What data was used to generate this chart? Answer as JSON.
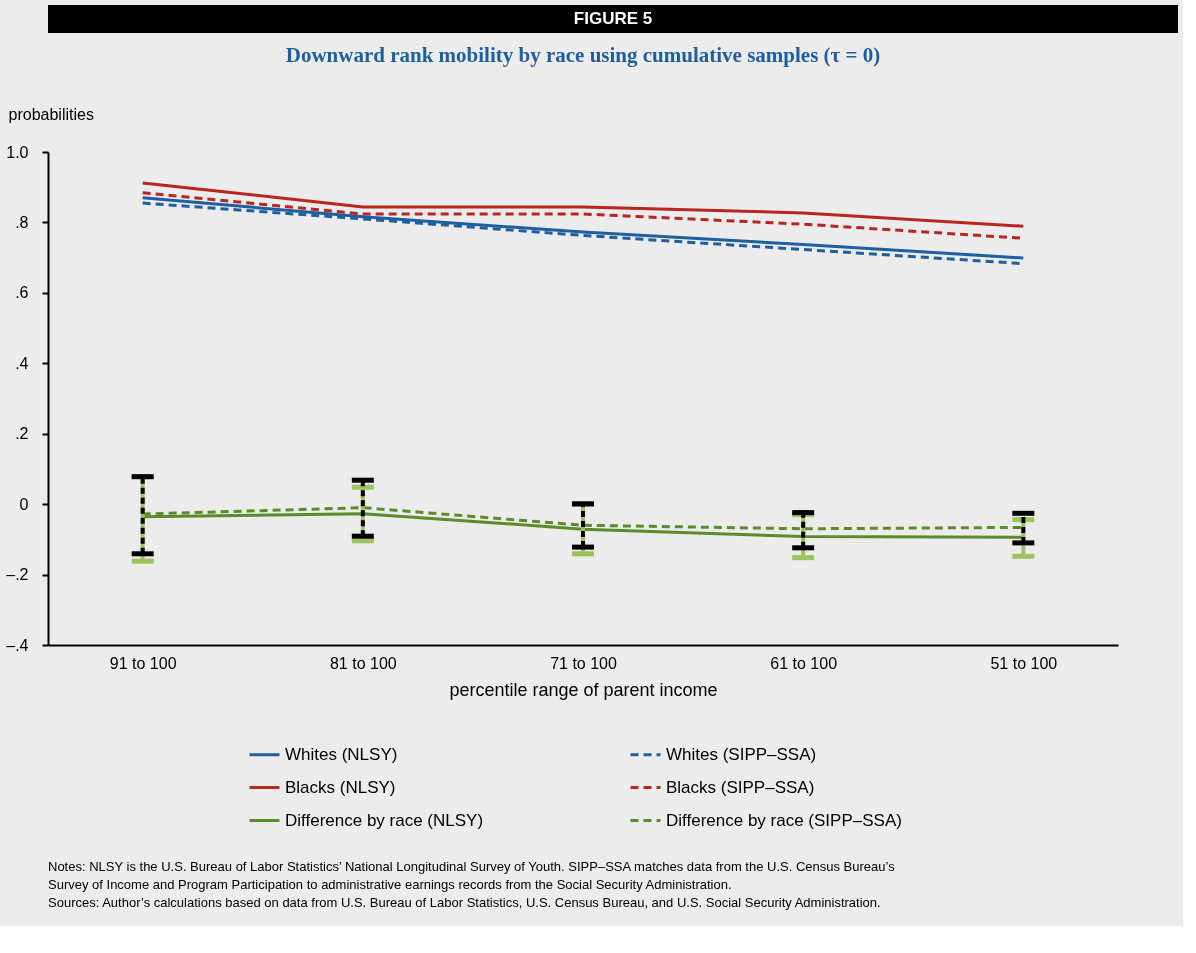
{
  "chart_data": {
    "type": "line",
    "title": "Downward rank mobility by race using cumulative samples (τ = 0)",
    "xlabel": "percentile range of parent income",
    "ylabel": "probabilities",
    "categories": [
      "91 to 100",
      "81 to 100",
      "71 to 100",
      "61 to 100",
      "51 to 100"
    ],
    "series": [
      {
        "name": "Whites (NLSY)",
        "color": "#1f5fa0",
        "line_style": "solid",
        "values": [
          0.87,
          0.816,
          0.773,
          0.737,
          0.699
        ]
      },
      {
        "name": "Whites (SIPP–SSA)",
        "color": "#1f5fa0",
        "line_style": "dashed",
        "values": [
          0.855,
          0.81,
          0.763,
          0.723,
          0.683
        ]
      },
      {
        "name": "Blacks (NLSY)",
        "color": "#b8261e",
        "line_style": "solid",
        "values": [
          0.912,
          0.844,
          0.844,
          0.827,
          0.789
        ]
      },
      {
        "name": "Blacks (SIPP–SSA)",
        "color": "#b8261e",
        "line_style": "dashed",
        "values": [
          0.884,
          0.824,
          0.824,
          0.795,
          0.755
        ]
      },
      {
        "name": "Difference by race (NLSY)",
        "color": "#5b8c2a",
        "line_style": "solid",
        "values": [
          -0.036,
          -0.027,
          -0.071,
          -0.092,
          -0.094
        ],
        "errors": [
          [
            -0.162,
            0.078
          ],
          [
            -0.104,
            0.048
          ],
          [
            -0.141,
            -0.001
          ],
          [
            -0.152,
            -0.03
          ],
          [
            -0.148,
            -0.044
          ]
        ]
      },
      {
        "name": "Difference by race (SIPP–SSA)",
        "color": "#5b8c2a",
        "line_style": "dashed",
        "values": [
          -0.028,
          -0.01,
          -0.06,
          -0.07,
          -0.066
        ],
        "errors": [
          [
            -0.141,
            0.078
          ],
          [
            -0.091,
            0.068
          ],
          [
            -0.122,
            0.001
          ],
          [
            -0.124,
            -0.024
          ],
          [
            -0.11,
            -0.026
          ]
        ]
      }
    ],
    "ylim": [
      -0.4,
      1.0
    ],
    "yticks": [
      {
        "value": -0.4,
        "label": "–.4"
      },
      {
        "value": -0.2,
        "label": "–.2"
      },
      0,
      {
        "value": 0.2,
        "label": ".2"
      },
      {
        "value": 0.4,
        "label": ".4"
      },
      {
        "value": 0.6,
        "label": ".6"
      },
      {
        "value": 0.8,
        "label": ".8"
      },
      {
        "value": 1.0,
        "label": "1.0"
      }
    ],
    "grid": false,
    "legend": "bottom",
    "marker": "none",
    "annotations": [
      "FIGURE 5",
      "Notes: NLSY is the U.S. Bureau of Labor Statistics’ National Longitudinal Survey of Youth. SIPP–SSA matches data from the U.S. Census Bureau’s Survey of Income and Program Participation to administrative earnings records from the Social Security Administration.",
      "Sources: Author’s calculations based on data from U.S. Bureau of Labor Statistics, U.S. Census Bureau, and U.S. Social Security Administration."
    ]
  }
}
